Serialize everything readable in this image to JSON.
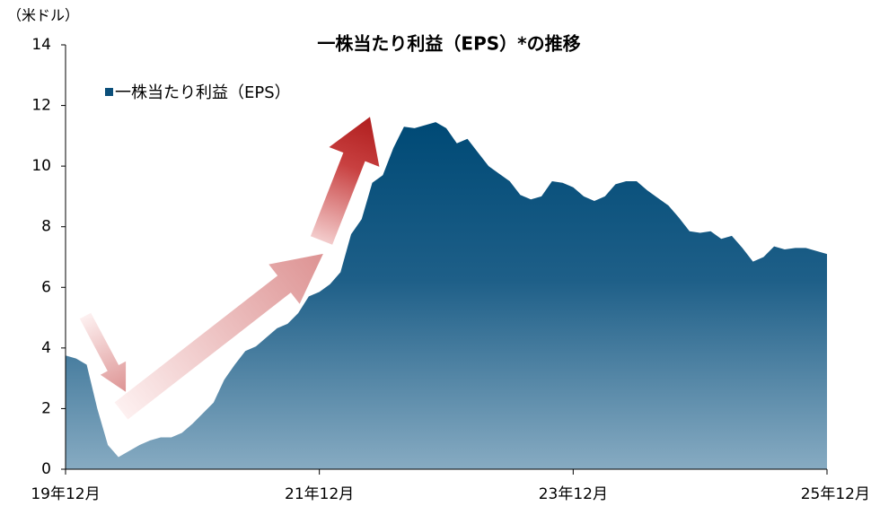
{
  "chart_data": {
    "type": "area",
    "title": "一株当たり利益（EPS）*の推移",
    "y_unit": "（米ドル）",
    "categories": [
      "19年12月",
      null,
      null,
      null,
      null,
      null,
      null,
      null,
      null,
      null,
      null,
      null,
      null,
      null,
      null,
      null,
      null,
      null,
      null,
      null,
      null,
      null,
      null,
      null,
      "21年12月",
      null,
      null,
      null,
      null,
      null,
      null,
      null,
      null,
      null,
      null,
      null,
      null,
      null,
      null,
      null,
      null,
      null,
      null,
      null,
      null,
      null,
      null,
      null,
      "23年12月",
      null,
      null,
      null,
      null,
      null,
      null,
      null,
      null,
      null,
      null,
      null,
      null,
      null,
      null,
      null,
      null,
      null,
      null,
      null,
      null,
      null,
      null,
      null,
      "25年12月"
    ],
    "series": [
      {
        "name": "一株当たり利益（EPS）",
        "color": "#0b4f7a",
        "values": [
          3.75,
          3.65,
          3.45,
          2.0,
          0.8,
          0.4,
          0.6,
          0.8,
          0.95,
          1.05,
          1.05,
          1.2,
          1.5,
          1.85,
          2.2,
          2.95,
          3.45,
          3.9,
          4.05,
          4.35,
          4.65,
          4.8,
          5.15,
          5.7,
          5.85,
          6.1,
          6.5,
          7.75,
          8.25,
          9.45,
          9.7,
          10.6,
          11.3,
          11.25,
          11.35,
          11.45,
          11.25,
          10.75,
          10.9,
          10.45,
          10.0,
          9.75,
          9.5,
          9.05,
          8.9,
          9.0,
          9.5,
          9.45,
          9.3,
          9.0,
          8.85,
          9.0,
          9.4,
          9.5,
          9.5,
          9.2,
          8.95,
          8.7,
          8.3,
          7.85,
          7.8,
          7.85,
          7.6,
          7.7,
          7.3,
          6.85,
          7.0,
          7.35,
          7.25,
          7.3,
          7.3,
          7.2,
          7.1
        ]
      }
    ],
    "ylim": [
      0,
      14
    ],
    "yticks": [
      0,
      2,
      4,
      6,
      8,
      10,
      12,
      14
    ],
    "grid": false,
    "legend": "top-left"
  }
}
